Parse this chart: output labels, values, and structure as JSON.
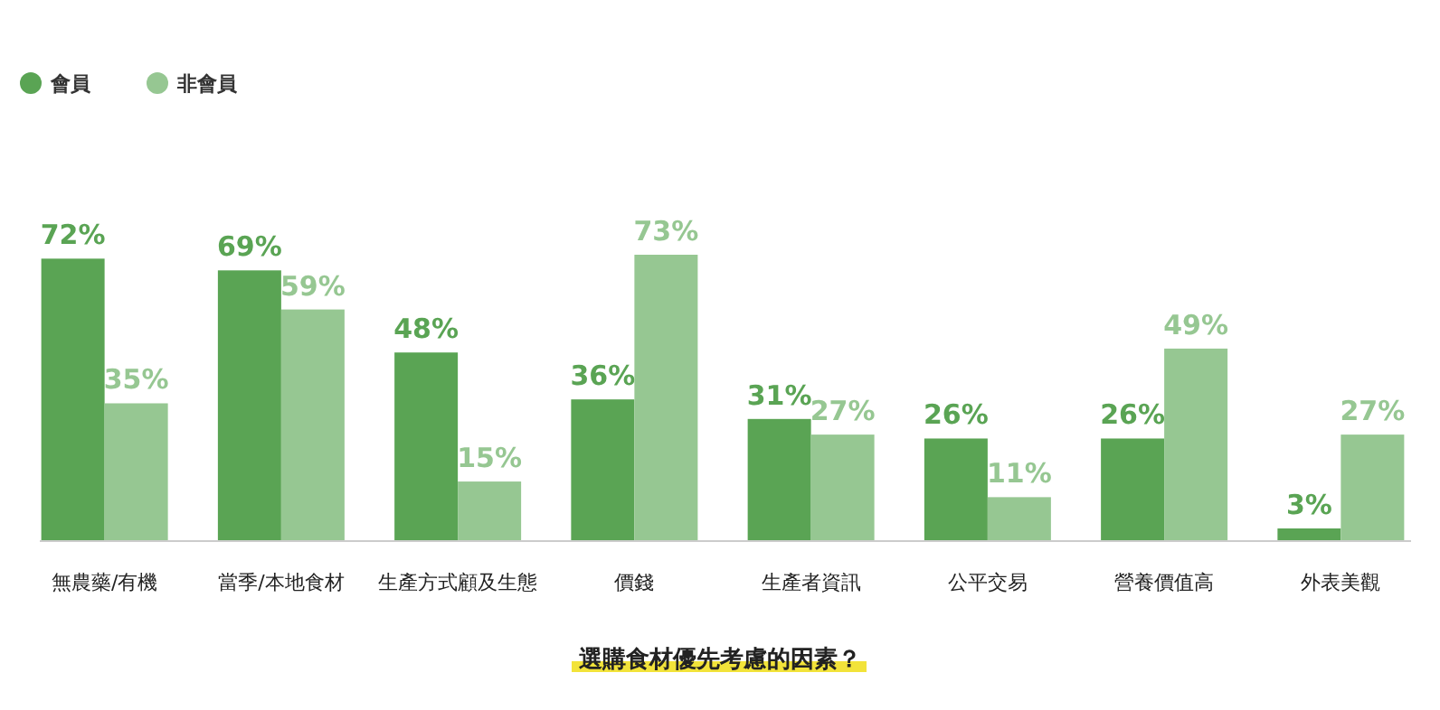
{
  "chart_data": {
    "type": "bar",
    "title": "選購食材優先考慮的因素？",
    "categories": [
      "無農藥/有機",
      "當季/本地食材",
      "生產方式顧及生態",
      "價錢",
      "生產者資訊",
      "公平交易",
      "營養價值高",
      "外表美觀"
    ],
    "series": [
      {
        "name": "會員",
        "color": "#5aa454",
        "values": [
          72,
          69,
          48,
          36,
          31,
          26,
          26,
          3
        ],
        "value_labels": [
          "72%",
          "69%",
          "48%",
          "36%",
          "31%",
          "26%",
          "26%",
          "3%"
        ]
      },
      {
        "name": "非會員",
        "color": "#96c792",
        "values": [
          35,
          59,
          15,
          73,
          27,
          11,
          49,
          27
        ],
        "value_labels": [
          "35%",
          "59%",
          "15%",
          "73%",
          "27%",
          "11%",
          "49%",
          "27%"
        ]
      }
    ],
    "legend": "top left"
  }
}
